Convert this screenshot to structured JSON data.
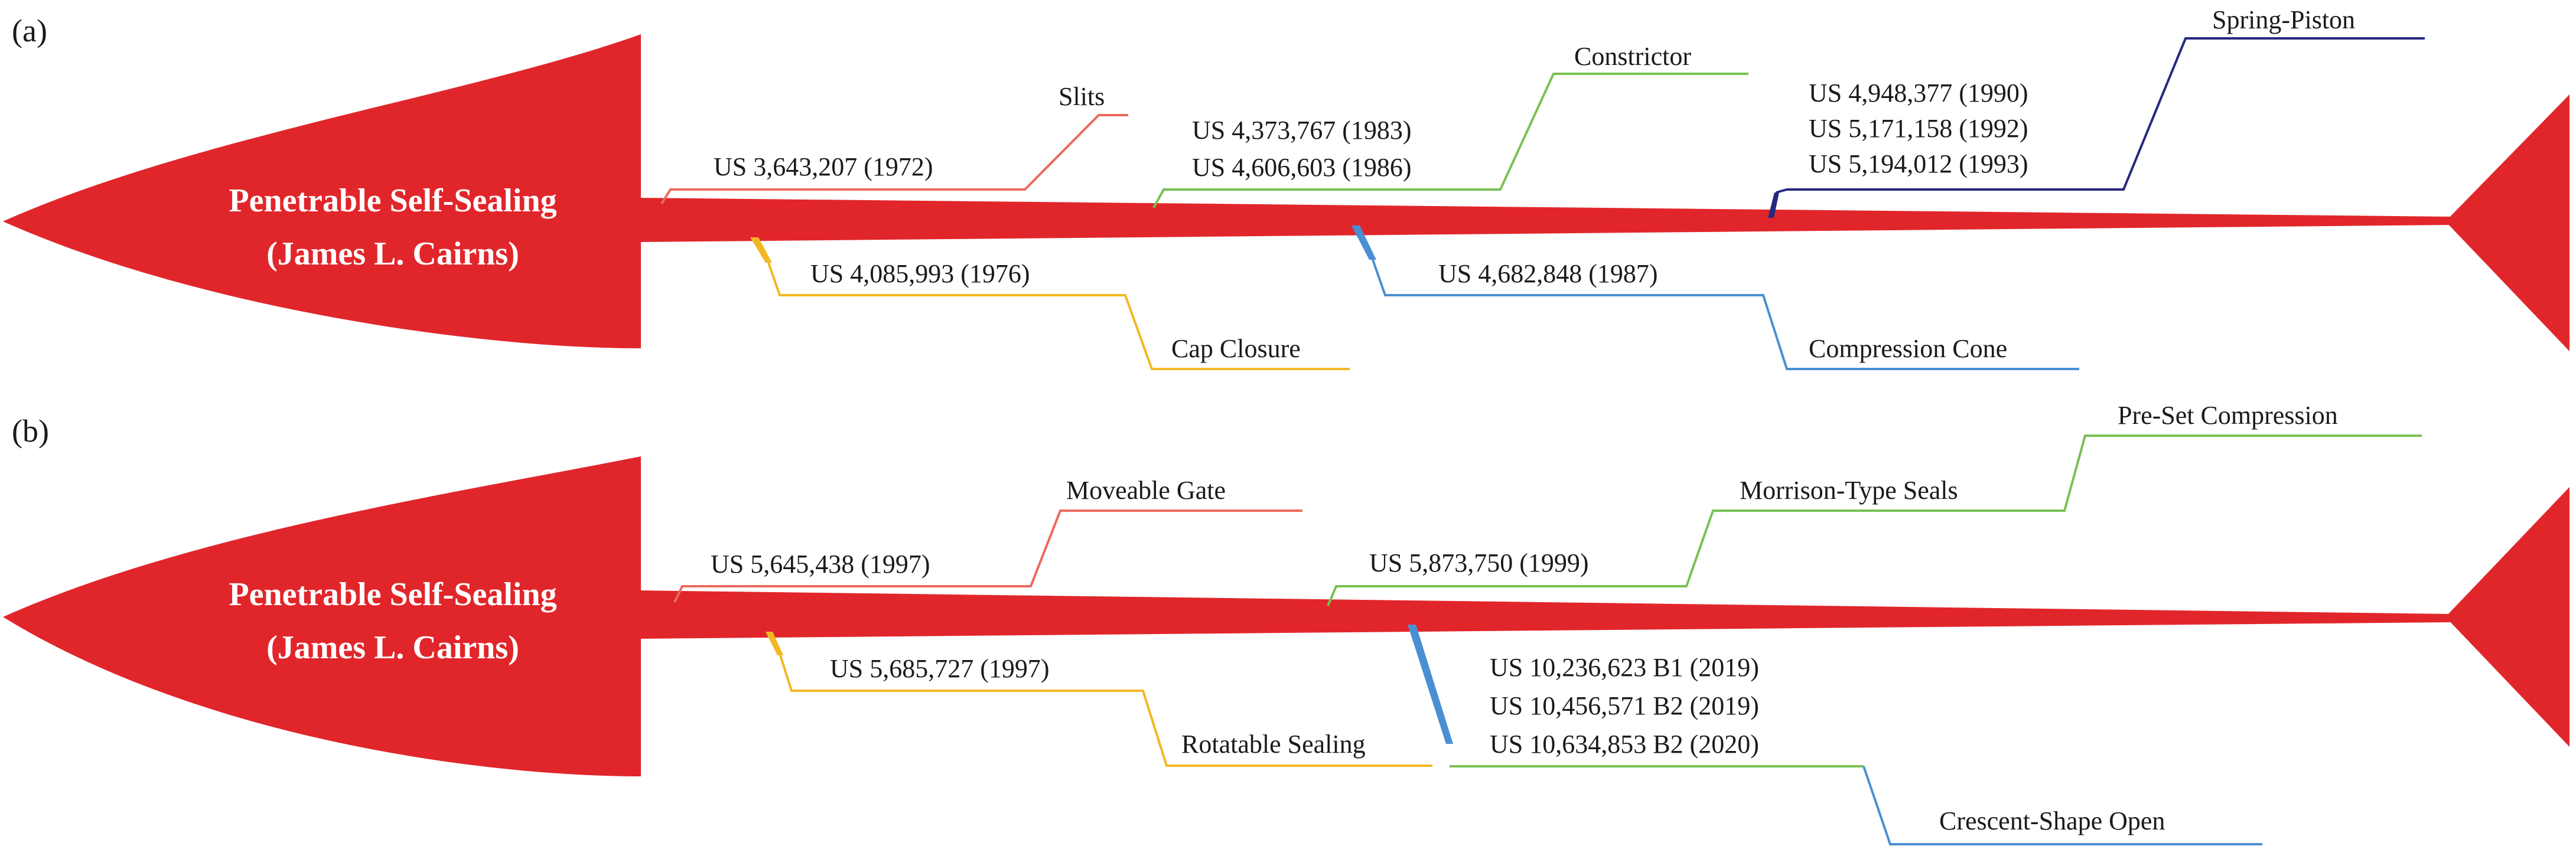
{
  "colors": {
    "body": "#e1262b",
    "red": "#ea6a5e",
    "green": "#78c153",
    "yellow": "#f2b824",
    "blue": "#4a8fd3",
    "navy": "#26287e"
  },
  "panels": [
    {
      "letter": "(a)",
      "title_line1": "Penetrable Self-Sealing",
      "title_line2": "(James L. Cairns)",
      "branches": [
        {
          "name": "Slits",
          "patents": [
            "US 3,643,207 (1972)"
          ],
          "color": "red"
        },
        {
          "name": "Constrictor",
          "patents": [
            "US 4,373,767 (1983)",
            "US 4,606,603 (1986)"
          ],
          "color": "green"
        },
        {
          "name": "Spring-Piston",
          "patents": [
            "US 4,948,377 (1990)",
            "US 5,171,158 (1992)",
            "US 5,194,012 (1993)"
          ],
          "color": "navy"
        },
        {
          "name": "Cap Closure",
          "patents": [
            "US 4,085,993 (1976)"
          ],
          "color": "yellow"
        },
        {
          "name": "Compression Cone",
          "patents": [
            "US 4,682,848 (1987)"
          ],
          "color": "blue"
        }
      ]
    },
    {
      "letter": "(b)",
      "title_line1": "Penetrable Self-Sealing",
      "title_line2": "(James L. Cairns)",
      "branches": [
        {
          "name": "Moveable Gate",
          "patents": [
            "US 5,645,438 (1997)"
          ],
          "color": "red"
        },
        {
          "name": "Morrison-Type Seals",
          "patents": [
            "US 5,873,750 (1999)"
          ],
          "color": "green"
        },
        {
          "name": "Pre-Set Compression",
          "patents": [],
          "color": "green"
        },
        {
          "name": "Rotatable Sealing",
          "patents": [
            "US 5,685,727 (1997)"
          ],
          "color": "yellow"
        },
        {
          "name": "Crescent-Shape Open",
          "patents": [
            "US 10,236,623 B1 (2019)",
            "US 10,456,571 B2 (2019)",
            "US 10,634,853 B2 (2020)"
          ],
          "color": "blue"
        }
      ]
    }
  ]
}
